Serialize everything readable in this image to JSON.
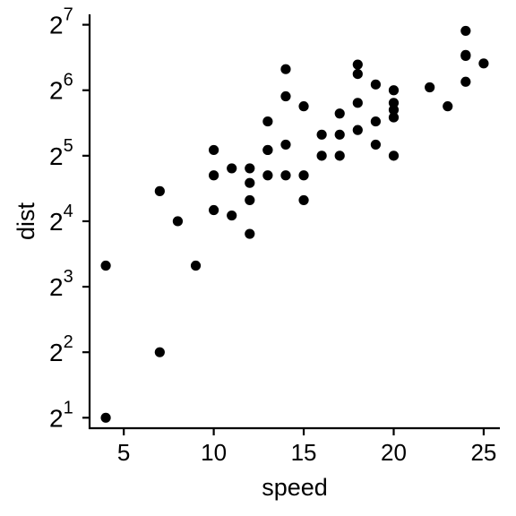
{
  "chart_data": {
    "type": "scatter",
    "title": "",
    "xlabel": "speed",
    "ylabel": "dist",
    "x_ticks": [
      "5",
      "10",
      "15",
      "20",
      "25"
    ],
    "x_tick_values": [
      5,
      10,
      15,
      20,
      25
    ],
    "y_ticks": [
      {
        "base": "2",
        "exp": "1"
      },
      {
        "base": "2",
        "exp": "2"
      },
      {
        "base": "2",
        "exp": "3"
      },
      {
        "base": "2",
        "exp": "4"
      },
      {
        "base": "2",
        "exp": "5"
      },
      {
        "base": "2",
        "exp": "6"
      },
      {
        "base": "2",
        "exp": "7"
      }
    ],
    "y_tick_values": [
      2,
      4,
      8,
      16,
      32,
      64,
      128
    ],
    "xlim": [
      3.1,
      25.9
    ],
    "ylim": [
      1.79,
      142.9
    ],
    "y_scale": "log2",
    "grid": false,
    "legend": "none",
    "point_color": "#000000",
    "points": [
      [
        4,
        2
      ],
      [
        4,
        10
      ],
      [
        7,
        4
      ],
      [
        7,
        22
      ],
      [
        8,
        16
      ],
      [
        9,
        10
      ],
      [
        10,
        18
      ],
      [
        10,
        26
      ],
      [
        10,
        34
      ],
      [
        11,
        17
      ],
      [
        11,
        28
      ],
      [
        12,
        14
      ],
      [
        12,
        20
      ],
      [
        12,
        24
      ],
      [
        12,
        28
      ],
      [
        13,
        26
      ],
      [
        13,
        34
      ],
      [
        13,
        34
      ],
      [
        13,
        46
      ],
      [
        14,
        26
      ],
      [
        14,
        36
      ],
      [
        14,
        60
      ],
      [
        14,
        80
      ],
      [
        15,
        20
      ],
      [
        15,
        26
      ],
      [
        15,
        54
      ],
      [
        16,
        32
      ],
      [
        16,
        40
      ],
      [
        17,
        32
      ],
      [
        17,
        40
      ],
      [
        17,
        50
      ],
      [
        18,
        42
      ],
      [
        18,
        56
      ],
      [
        18,
        76
      ],
      [
        18,
        84
      ],
      [
        19,
        36
      ],
      [
        19,
        46
      ],
      [
        19,
        68
      ],
      [
        20,
        32
      ],
      [
        20,
        48
      ],
      [
        20,
        52
      ],
      [
        20,
        56
      ],
      [
        20,
        64
      ],
      [
        22,
        66
      ],
      [
        23,
        54
      ],
      [
        24,
        70
      ],
      [
        24,
        92
      ],
      [
        24,
        93
      ],
      [
        24,
        120
      ],
      [
        25,
        85
      ]
    ]
  }
}
